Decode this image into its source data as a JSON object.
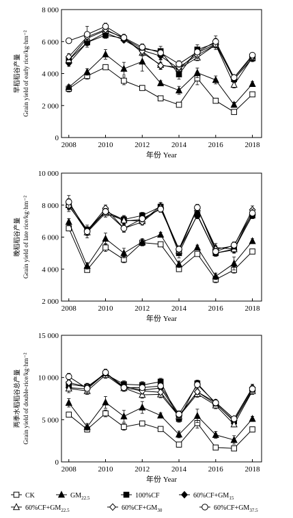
{
  "chart_data": [
    {
      "type": "line",
      "xlabel": "年份 Year",
      "ylabel": "早稻稻谷产量\nGrain yield of early rice/kg·hm⁻²",
      "x": [
        2008,
        2009,
        2010,
        2011,
        2012,
        2013,
        2014,
        2015,
        2016,
        2017,
        2018
      ],
      "xlim": [
        2007.6,
        2018.5
      ],
      "ylim": [
        0,
        8000
      ],
      "xticks": [
        2008,
        2010,
        2012,
        2014,
        2016,
        2018
      ],
      "yticks": [
        0,
        2000,
        4000,
        6000,
        8000
      ],
      "ytick_labels": [
        "0",
        "2 000",
        "4 000",
        "6 000",
        "8 000"
      ],
      "series": [
        {
          "name": "CK",
          "values": [
            3050,
            3850,
            4400,
            3550,
            3100,
            2450,
            2050,
            3700,
            2300,
            1600,
            2700
          ],
          "err": [
            200,
            200,
            150,
            250,
            100,
            100,
            100,
            400,
            150,
            150,
            150
          ]
        },
        {
          "name": "GM22.5",
          "values": [
            3150,
            4100,
            5200,
            4300,
            4750,
            3400,
            2950,
            4050,
            3600,
            2050,
            3350
          ],
          "err": [
            150,
            200,
            300,
            400,
            600,
            150,
            250,
            300,
            250,
            150,
            150
          ]
        },
        {
          "name": "100%CF",
          "values": [
            4850,
            5950,
            6400,
            6200,
            5550,
            5400,
            3950,
            5500,
            5900,
            3650,
            4950
          ],
          "err": [
            300,
            300,
            200,
            200,
            300,
            300,
            300,
            300,
            300,
            200,
            200
          ]
        },
        {
          "name": "60%CF+GM15",
          "values": [
            4650,
            5950,
            6550,
            6100,
            5450,
            5100,
            4300,
            5300,
            5850,
            3650,
            4950
          ],
          "err": [
            200,
            200,
            150,
            150,
            200,
            200,
            200,
            200,
            200,
            150,
            150
          ]
        },
        {
          "name": "60%CF+GM22.5",
          "values": [
            4850,
            6200,
            6700,
            6250,
            5300,
            4550,
            4300,
            5000,
            5800,
            3300,
            5000
          ],
          "err": [
            300,
            200,
            200,
            200,
            200,
            300,
            250,
            200,
            300,
            200,
            150
          ]
        },
        {
          "name": "60%CF+GM30",
          "values": [
            5050,
            6300,
            6750,
            6200,
            5400,
            4500,
            4400,
            5150,
            5800,
            3750,
            5050
          ],
          "err": [
            200,
            200,
            150,
            200,
            200,
            200,
            200,
            200,
            200,
            150,
            150
          ]
        },
        {
          "name": "60%CF+GM37.5",
          "values": [
            6050,
            6450,
            6950,
            6250,
            5650,
            5300,
            4600,
            5350,
            6000,
            3750,
            5150
          ],
          "err": [
            150,
            500,
            200,
            200,
            200,
            200,
            200,
            300,
            350,
            150,
            150
          ]
        }
      ]
    },
    {
      "type": "line",
      "xlabel": "年份 Year",
      "ylabel": "晚稻稻谷产量\nGrain yield of late rice/kg·hm⁻²",
      "x": [
        2008,
        2009,
        2010,
        2011,
        2012,
        2013,
        2014,
        2015,
        2016,
        2017,
        2018
      ],
      "xlim": [
        2007.6,
        2018.5
      ],
      "ylim": [
        2000,
        10000
      ],
      "xticks": [
        2008,
        2010,
        2012,
        2014,
        2016,
        2018
      ],
      "yticks": [
        2000,
        4000,
        6000,
        8000,
        10000
      ],
      "ytick_labels": [
        "2 000",
        "4 000",
        "6 000",
        "8 000",
        "10 000"
      ],
      "series": [
        {
          "name": "CK",
          "values": [
            6550,
            3950,
            5350,
            4600,
            5650,
            5550,
            4000,
            4950,
            3350,
            3950,
            5100
          ],
          "err": [
            150,
            150,
            250,
            200,
            200,
            150,
            150,
            150,
            200,
            200,
            150
          ]
        },
        {
          "name": "GM22.5",
          "values": [
            6950,
            4200,
            5900,
            5000,
            5700,
            6150,
            4300,
            5350,
            3550,
            4350,
            5750
          ],
          "err": [
            200,
            200,
            350,
            300,
            200,
            150,
            200,
            150,
            200,
            400,
            150
          ]
        },
        {
          "name": "100%CF",
          "values": [
            8100,
            6450,
            7600,
            7100,
            7350,
            7900,
            5000,
            7400,
            5000,
            5250,
            7350
          ],
          "err": [
            300,
            300,
            250,
            250,
            200,
            250,
            300,
            250,
            200,
            250,
            200
          ]
        },
        {
          "name": "60%CF+GM15",
          "values": [
            7950,
            6400,
            7650,
            7000,
            7100,
            7800,
            5200,
            7350,
            5000,
            5200,
            7400
          ],
          "err": [
            250,
            250,
            200,
            200,
            200,
            200,
            200,
            200,
            200,
            200,
            200
          ]
        },
        {
          "name": "60%CF+GM22.5",
          "values": [
            8000,
            6300,
            7500,
            7050,
            7000,
            7950,
            5150,
            7800,
            5350,
            5250,
            7550
          ],
          "err": [
            400,
            350,
            250,
            250,
            200,
            200,
            250,
            200,
            250,
            200,
            250
          ]
        },
        {
          "name": "60%CF+GM30",
          "values": [
            7950,
            6400,
            7800,
            6550,
            6950,
            7850,
            5250,
            7800,
            5250,
            5450,
            7700
          ],
          "err": [
            200,
            200,
            200,
            200,
            200,
            200,
            200,
            200,
            200,
            200,
            250
          ]
        },
        {
          "name": "60%CF+GM37.5",
          "values": [
            8200,
            6350,
            7600,
            6550,
            7150,
            7750,
            5250,
            7850,
            5100,
            5500,
            7500
          ],
          "err": [
            400,
            250,
            200,
            250,
            200,
            200,
            200,
            200,
            200,
            200,
            250
          ]
        }
      ]
    },
    {
      "type": "line",
      "xlabel": "年份 Year",
      "ylabel": "两季水稻稻谷总产量\nGrain yield of double-rice/kg·hm⁻²",
      "x": [
        2008,
        2009,
        2010,
        2011,
        2012,
        2013,
        2014,
        2015,
        2016,
        2017,
        2018
      ],
      "xlim": [
        2007.6,
        2018.5
      ],
      "ylim": [
        0,
        15000
      ],
      "xticks": [
        2008,
        2010,
        2012,
        2014,
        2016,
        2018
      ],
      "yticks": [
        0,
        5000,
        10000,
        15000
      ],
      "ytick_labels": [
        "0",
        "5 000",
        "10 000",
        "15 000"
      ],
      "series": [
        {
          "name": "CK",
          "values": [
            5600,
            3850,
            5750,
            4150,
            4550,
            3900,
            2050,
            4600,
            1700,
            1600,
            3850
          ],
          "err": [
            300,
            300,
            400,
            400,
            300,
            250,
            200,
            600,
            200,
            300,
            300
          ]
        },
        {
          "name": "GM22.5",
          "values": [
            7000,
            4150,
            7050,
            5400,
            6450,
            5500,
            3250,
            5450,
            3200,
            2600,
            5100
          ],
          "err": [
            500,
            400,
            700,
            700,
            700,
            300,
            400,
            800,
            400,
            500,
            300
          ]
        },
        {
          "name": "100%CF",
          "values": [
            9200,
            8900,
            10400,
            9200,
            9100,
            9500,
            5100,
            9300,
            6900,
            4800,
            8500
          ],
          "err": [
            400,
            400,
            400,
            400,
            400,
            400,
            400,
            400,
            400,
            400,
            400
          ]
        },
        {
          "name": "60%CF+GM15",
          "values": [
            8800,
            8650,
            10500,
            8950,
            8500,
            8750,
            5500,
            8300,
            6850,
            4900,
            8450
          ],
          "err": [
            400,
            400,
            300,
            300,
            300,
            300,
            300,
            300,
            300,
            300,
            300
          ]
        },
        {
          "name": "60%CF+GM22.5",
          "values": [
            8700,
            8400,
            10300,
            8750,
            7950,
            8000,
            5400,
            8050,
            6700,
            4450,
            8400
          ],
          "err": [
            500,
            400,
            400,
            400,
            400,
            400,
            400,
            400,
            400,
            300,
            400
          ]
        },
        {
          "name": "60%CF+GM30",
          "values": [
            9400,
            8900,
            10500,
            8800,
            8400,
            8250,
            5450,
            8300,
            7050,
            5100,
            8800
          ],
          "err": [
            400,
            400,
            300,
            300,
            300,
            300,
            300,
            300,
            300,
            300,
            400
          ]
        },
        {
          "name": "60%CF+GM37.5",
          "values": [
            10100,
            8700,
            10600,
            8800,
            8800,
            9000,
            5650,
            9150,
            7000,
            5100,
            8650
          ],
          "err": [
            400,
            500,
            400,
            300,
            300,
            300,
            400,
            400,
            400,
            300,
            400
          ]
        }
      ]
    }
  ],
  "legend": [
    {
      "name": "CK",
      "marker": "open-square"
    },
    {
      "name": "GM22.5",
      "marker": "filled-triangle"
    },
    {
      "name": "100%CF",
      "marker": "filled-square"
    },
    {
      "name": "60%CF+GM15",
      "marker": "filled-diamond"
    },
    {
      "name": "60%CF+GM22.5",
      "marker": "open-triangle"
    },
    {
      "name": "60%CF+GM30",
      "marker": "open-diamond"
    },
    {
      "name": "60%CF+GM37.5",
      "marker": "open-circle"
    }
  ]
}
